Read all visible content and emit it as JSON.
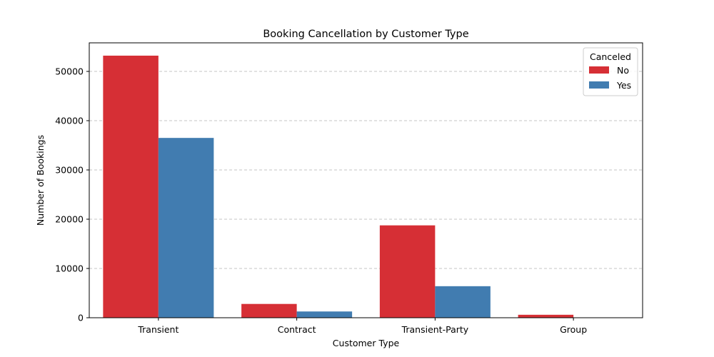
{
  "chart_data": {
    "type": "bar",
    "title": "Booking Cancellation by Customer Type",
    "xlabel": "Customer Type",
    "ylabel": "Number of Bookings",
    "categories": [
      "Transient",
      "Contract",
      "Transient-Party",
      "Group"
    ],
    "series": [
      {
        "name": "No",
        "color": "#d62f35",
        "values": [
          53200,
          2800,
          18750,
          600
        ]
      },
      {
        "name": "Yes",
        "color": "#417cb0",
        "values": [
          36500,
          1270,
          6400,
          60
        ]
      }
    ],
    "ylim": [
      0,
      55800
    ],
    "yticks": [
      0,
      10000,
      20000,
      30000,
      40000,
      50000
    ],
    "grid": true,
    "legend": {
      "title": "Canceled",
      "placement": "top-right"
    }
  }
}
